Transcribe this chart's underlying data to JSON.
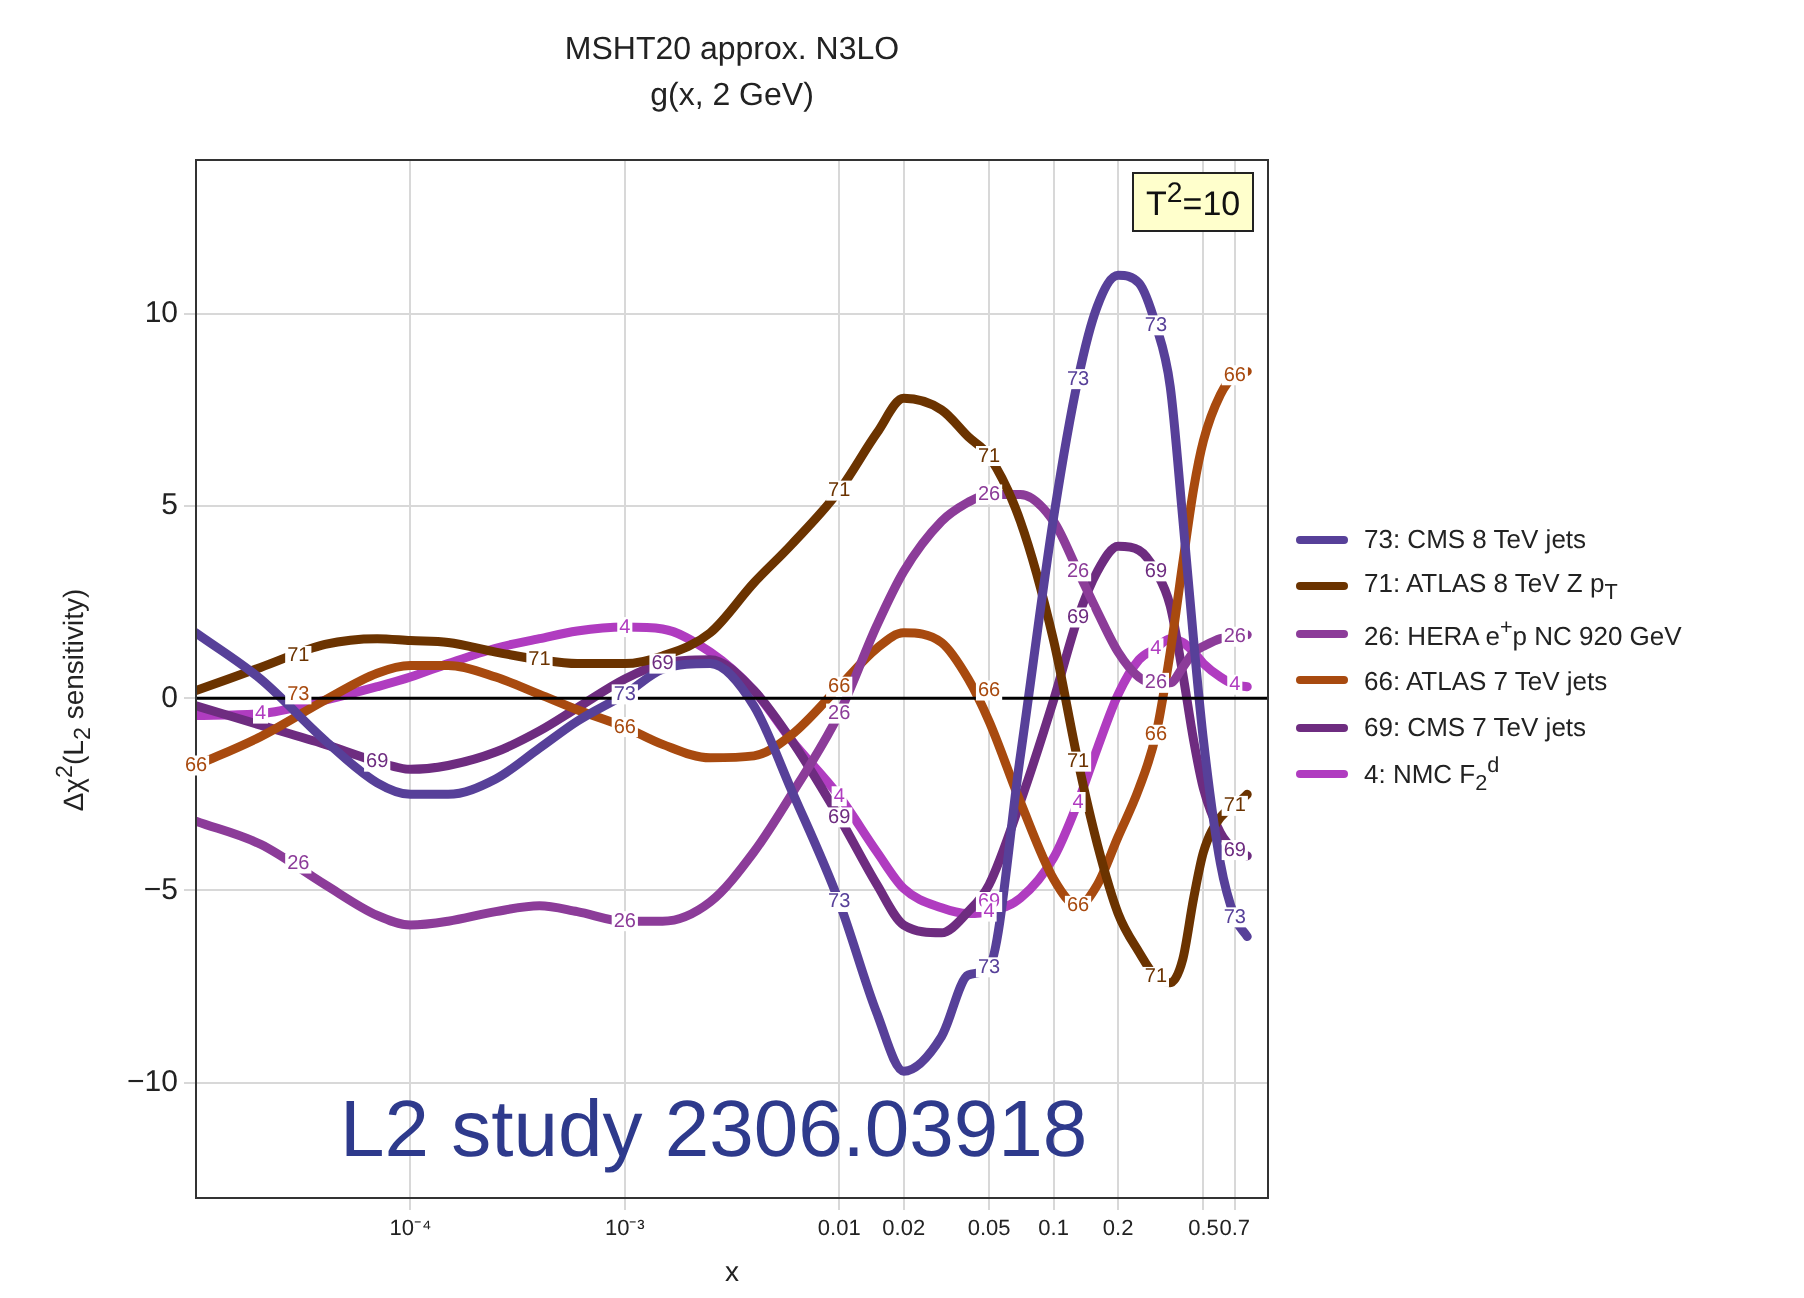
{
  "chart_data": {
    "type": "line",
    "title": "MSHT20 approx. N3LO",
    "subtitle": "g(x, 2 GeV)",
    "xlabel": "x",
    "ylabel": "Δχ$^{2}$(L$_{2}$ sensitivity)",
    "x": [
      1e-05,
      2e-05,
      4e-05,
      7e-05,
      0.0001,
      0.00015,
      0.00025,
      0.0004,
      0.0006,
      0.001,
      0.0015,
      0.0025,
      0.004,
      0.006,
      0.01,
      0.015,
      0.02,
      0.03,
      0.04,
      0.05,
      0.07,
      0.1,
      0.13,
      0.16,
      0.2,
      0.25,
      0.3,
      0.35,
      0.4,
      0.45,
      0.5,
      0.6,
      0.7,
      0.8
    ],
    "series": [
      {
        "name": "73: CMS 8 TeV jets",
        "color": "#574099",
        "values": [
          1.7,
          0.5,
          -1.1,
          -2.2,
          -2.5,
          -2.5,
          -2.1,
          -1.3,
          -0.6,
          0.1,
          0.75,
          0.9,
          -0.2,
          -2.4,
          -5.3,
          -8.2,
          -9.7,
          -8.8,
          -7.2,
          -7.0,
          -1.5,
          4.7,
          8.3,
          10.2,
          11.0,
          10.8,
          9.7,
          8.1,
          4.7,
          1.5,
          -1.1,
          -4.3,
          -5.7,
          -6.2
        ]
      },
      {
        "name": "71: ATLAS 8 TeV Z p$_{T}$",
        "color": "#6b3300",
        "values": [
          0.2,
          0.8,
          1.4,
          1.55,
          1.5,
          1.45,
          1.2,
          1.0,
          0.9,
          0.9,
          1.1,
          1.7,
          3.0,
          4.0,
          5.4,
          6.9,
          7.8,
          7.5,
          6.8,
          6.3,
          4.6,
          1.5,
          -1.65,
          -3.8,
          -5.6,
          -6.6,
          -7.25,
          -7.4,
          -6.8,
          -5.2,
          -4.0,
          -3.1,
          -2.8,
          -2.5
        ]
      },
      {
        "name": "26: HERA e$^{+}$p NC 920 GeV",
        "color": "#8c3c99",
        "values": [
          -3.2,
          -3.8,
          -4.85,
          -5.65,
          -5.9,
          -5.8,
          -5.55,
          -5.4,
          -5.55,
          -5.8,
          -5.8,
          -5.3,
          -4.0,
          -2.5,
          -0.4,
          1.9,
          3.3,
          4.6,
          5.1,
          5.3,
          5.3,
          4.6,
          3.3,
          2.25,
          1.2,
          0.55,
          0.4,
          0.4,
          0.8,
          1.2,
          1.35,
          1.55,
          1.6,
          1.65
        ]
      },
      {
        "name": "66: ATLAS 7 TeV jets",
        "color": "#a84a0f",
        "values": [
          -1.75,
          -1.0,
          -0.05,
          0.65,
          0.85,
          0.85,
          0.55,
          0.1,
          -0.3,
          -0.75,
          -1.2,
          -1.55,
          -1.5,
          -0.95,
          0.3,
          1.3,
          1.7,
          1.45,
          0.5,
          -0.6,
          -2.7,
          -4.7,
          -5.4,
          -4.85,
          -3.6,
          -2.35,
          -0.95,
          1.2,
          3.5,
          5.45,
          6.7,
          7.9,
          8.4,
          8.5
        ]
      },
      {
        "name": "69: CMS 7 TeV jets",
        "color": "#6e2c80",
        "values": [
          -0.2,
          -0.7,
          -1.2,
          -1.65,
          -1.85,
          -1.75,
          -1.4,
          -0.85,
          -0.25,
          0.5,
          0.9,
          1.0,
          0.2,
          -1.1,
          -3.1,
          -4.85,
          -5.9,
          -6.1,
          -5.55,
          -4.85,
          -2.7,
          -0.05,
          2.1,
          3.3,
          3.95,
          3.85,
          3.3,
          2.4,
          0.65,
          -1.1,
          -2.35,
          -3.5,
          -3.95,
          -4.1
        ]
      },
      {
        "name": "4: NMC F$_{2}$$^{d}$",
        "color": "#b03cc0",
        "values": [
          -0.45,
          -0.4,
          -0.05,
          0.3,
          0.55,
          0.9,
          1.3,
          1.55,
          1.75,
          1.85,
          1.8,
          1.2,
          0.2,
          -1.1,
          -2.55,
          -4.0,
          -4.95,
          -5.45,
          -5.6,
          -5.55,
          -5.2,
          -4.15,
          -2.7,
          -1.3,
          0.1,
          1.0,
          1.3,
          1.55,
          1.45,
          1.2,
          0.9,
          0.55,
          0.35,
          0.3
        ]
      }
    ],
    "xlim": [
      1e-05,
      1
    ],
    "xticks": [
      {
        "value": 0.0001,
        "label": "10⁻⁴"
      },
      {
        "value": 0.001,
        "label": "10⁻³"
      },
      0.01,
      0.02,
      0.05,
      0.1,
      0.2,
      0.5,
      0.7
    ],
    "ylim": [
      -13,
      14
    ],
    "yticks": [
      -10,
      -5,
      0,
      5,
      10
    ],
    "log": "x",
    "grid": true,
    "legend": "right",
    "marker": "none",
    "line_style": "solid",
    "ref_lines": [
      {
        "axis": "y",
        "value": 0,
        "color": "#000000"
      }
    ],
    "annotations": [
      "T$^{2}$=10",
      "L2 study 2306.03918",
      {
        "text": "73",
        "x": 3e-05,
        "y": 0.1
      },
      {
        "text": "73",
        "x": 0.001,
        "y": 0.1
      },
      {
        "text": "73",
        "x": 0.01,
        "y": -5.3
      },
      {
        "text": "73",
        "x": 0.05,
        "y": -7.0
      },
      {
        "text": "73",
        "x": 0.13,
        "y": 8.3
      },
      {
        "text": "73",
        "x": 0.3,
        "y": 9.7
      },
      {
        "text": "73",
        "x": 0.7,
        "y": -5.7
      },
      {
        "text": "71",
        "x": 3e-05,
        "y": 1.1
      },
      {
        "text": "71",
        "x": 0.0004,
        "y": 1.0
      },
      {
        "text": "71",
        "x": 0.01,
        "y": 5.4
      },
      {
        "text": "71",
        "x": 0.05,
        "y": 6.3
      },
      {
        "text": "71",
        "x": 0.13,
        "y": -1.65
      },
      {
        "text": "71",
        "x": 0.3,
        "y": -7.25
      },
      {
        "text": "71",
        "x": 0.7,
        "y": -2.8
      },
      {
        "text": "26",
        "x": 3e-05,
        "y": -4.3
      },
      {
        "text": "26",
        "x": 0.001,
        "y": -5.8
      },
      {
        "text": "26",
        "x": 0.01,
        "y": -0.4
      },
      {
        "text": "26",
        "x": 0.05,
        "y": 5.3
      },
      {
        "text": "26",
        "x": 0.13,
        "y": 3.3
      },
      {
        "text": "26",
        "x": 0.3,
        "y": 0.4
      },
      {
        "text": "26",
        "x": 0.7,
        "y": 1.6
      },
      {
        "text": "66",
        "x": 1e-05,
        "y": -1.75
      },
      {
        "text": "66",
        "x": 0.001,
        "y": -0.75
      },
      {
        "text": "66",
        "x": 0.01,
        "y": 0.3
      },
      {
        "text": "66",
        "x": 0.05,
        "y": 0.2
      },
      {
        "text": "66",
        "x": 0.13,
        "y": -5.4
      },
      {
        "text": "66",
        "x": 0.3,
        "y": -0.95
      },
      {
        "text": "66",
        "x": 0.7,
        "y": 8.4
      },
      {
        "text": "69",
        "x": 7e-05,
        "y": -1.65
      },
      {
        "text": "69",
        "x": 0.0015,
        "y": 0.9
      },
      {
        "text": "69",
        "x": 0.01,
        "y": -3.1
      },
      {
        "text": "69",
        "x": 0.05,
        "y": -5.3
      },
      {
        "text": "69",
        "x": 0.13,
        "y": 2.1
      },
      {
        "text": "69",
        "x": 0.3,
        "y": 3.3
      },
      {
        "text": "69",
        "x": 0.7,
        "y": -3.95
      },
      {
        "text": "4",
        "x": 2e-05,
        "y": -0.4
      },
      {
        "text": "4",
        "x": 0.001,
        "y": 1.85
      },
      {
        "text": "4",
        "x": 0.01,
        "y": -2.55
      },
      {
        "text": "4",
        "x": 0.05,
        "y": -5.55
      },
      {
        "text": "4",
        "x": 0.13,
        "y": -2.7
      },
      {
        "text": "4",
        "x": 0.3,
        "y": 1.3
      },
      {
        "text": "4",
        "x": 0.7,
        "y": 0.35
      }
    ]
  }
}
